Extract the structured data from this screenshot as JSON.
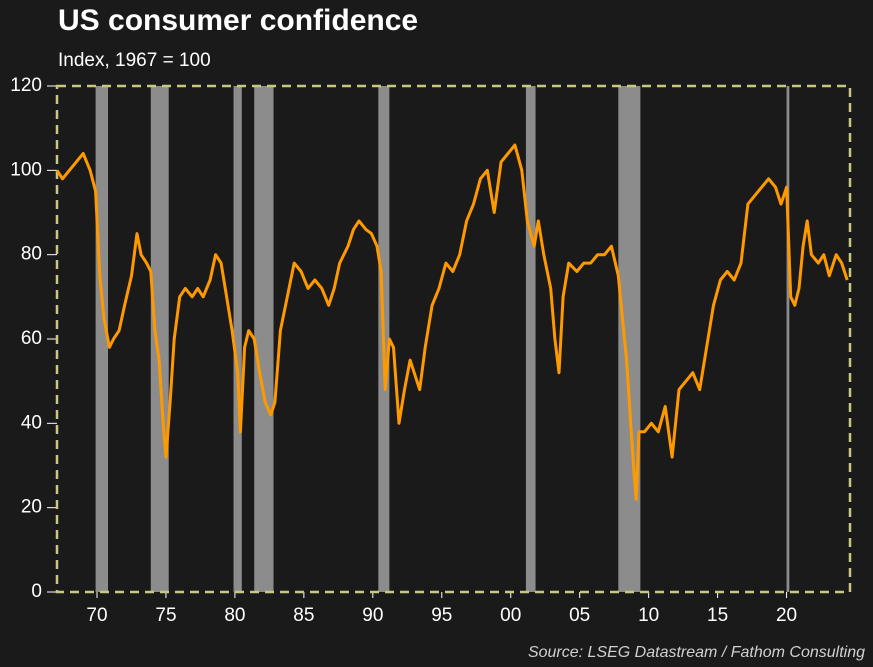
{
  "chart_data": {
    "type": "line",
    "title": "US consumer confidence",
    "subtitle": "Index, 1967 = 100",
    "source": "Source: LSEG Datastream / Fathom Consulting",
    "color": "#ff9900",
    "recession_color": "#8c8c8c",
    "recessions": [
      [
        1969.9,
        1970.8
      ],
      [
        1973.9,
        1975.2
      ],
      [
        1979.9,
        1980.5
      ],
      [
        1981.4,
        1982.8
      ],
      [
        1990.4,
        1991.2
      ],
      [
        2001.1,
        2001.8
      ],
      [
        2007.8,
        2009.4
      ],
      [
        2020.0,
        2020.2
      ]
    ],
    "xlim": [
      1967.1,
      2024.6
    ],
    "ylim": [
      0,
      120
    ],
    "yticks": [
      0,
      20,
      40,
      60,
      80,
      100,
      120
    ],
    "xticks": [
      {
        "value": 1970,
        "label": "70"
      },
      {
        "value": 1975,
        "label": "75"
      },
      {
        "value": 1980,
        "label": "80"
      },
      {
        "value": 1985,
        "label": "85"
      },
      {
        "value": 1990,
        "label": "90"
      },
      {
        "value": 1995,
        "label": "95"
      },
      {
        "value": 2000,
        "label": "00"
      },
      {
        "value": 2005,
        "label": "05"
      },
      {
        "value": 2010,
        "label": "10"
      },
      {
        "value": 2015,
        "label": "15"
      },
      {
        "value": 2020,
        "label": "20"
      }
    ],
    "x": [
      1967.1,
      1967.5,
      1968,
      1968.5,
      1969,
      1969.5,
      1969.9,
      1970.2,
      1970.5,
      1970.9,
      1971.2,
      1971.6,
      1972,
      1972.5,
      1972.9,
      1973.2,
      1973.6,
      1973.9,
      1974.2,
      1974.5,
      1974.8,
      1975.0,
      1975.3,
      1975.6,
      1976,
      1976.4,
      1976.9,
      1977.3,
      1977.7,
      1978.2,
      1978.6,
      1979,
      1979.4,
      1979.8,
      1980.2,
      1980.4,
      1980.7,
      1981.0,
      1981.4,
      1981.8,
      1982.2,
      1982.6,
      1982.9,
      1983.3,
      1983.8,
      1984.3,
      1984.8,
      1985.3,
      1985.8,
      1986.3,
      1986.8,
      1987.2,
      1987.6,
      1988.2,
      1988.6,
      1989,
      1989.5,
      1989.9,
      1990.3,
      1990.6,
      1990.9,
      1991.2,
      1991.5,
      1991.9,
      1992.3,
      1992.7,
      1993,
      1993.4,
      1993.8,
      1994.3,
      1994.8,
      1995.3,
      1995.8,
      1996.3,
      1996.8,
      1997.3,
      1997.8,
      1998.3,
      1998.8,
      1999.3,
      1999.8,
      2000.3,
      2000.8,
      2001.2,
      2001.7,
      2002.0,
      2002.4,
      2002.9,
      2003.2,
      2003.5,
      2003.8,
      2004.2,
      2004.8,
      2005.3,
      2005.8,
      2006.3,
      2006.8,
      2007.3,
      2007.8,
      2008.1,
      2008.4,
      2008.7,
      2008.9,
      2009.1,
      2009.3,
      2009.7,
      2010.2,
      2010.7,
      2011.2,
      2011.7,
      2012.2,
      2012.7,
      2013.2,
      2013.7,
      2014.2,
      2014.7,
      2015.2,
      2015.7,
      2016.2,
      2016.7,
      2017.2,
      2017.7,
      2018.2,
      2018.7,
      2019.2,
      2019.6,
      2020.0,
      2020.3,
      2020.6,
      2020.9,
      2021.2,
      2021.5,
      2021.8,
      2022.3,
      2022.7,
      2023.1,
      2023.6,
      2024.0,
      2024.4
    ],
    "series": [
      {
        "name": "Consumer confidence",
        "color": "#ff9900",
        "values": [
          100,
          98,
          100,
          102,
          104,
          100,
          95,
          75,
          65,
          58,
          60,
          62,
          68,
          75,
          85,
          80,
          78,
          76,
          62,
          55,
          40,
          32,
          45,
          60,
          70,
          72,
          70,
          72,
          70,
          74,
          80,
          78,
          70,
          62,
          52,
          38,
          58,
          62,
          60,
          52,
          45,
          42,
          45,
          62,
          70,
          78,
          76,
          72,
          74,
          72,
          68,
          72,
          78,
          82,
          86,
          88,
          86,
          85,
          82,
          76,
          48,
          60,
          58,
          40,
          48,
          55,
          52,
          48,
          58,
          68,
          72,
          78,
          76,
          80,
          88,
          92,
          98,
          100,
          90,
          102,
          104,
          106,
          100,
          88,
          82,
          88,
          80,
          72,
          60,
          52,
          70,
          78,
          76,
          78,
          78,
          80,
          80,
          82,
          75,
          65,
          55,
          40,
          30,
          22,
          38,
          38,
          40,
          38,
          44,
          32,
          48,
          50,
          52,
          48,
          58,
          68,
          74,
          76,
          74,
          78,
          92,
          94,
          96,
          98,
          96,
          92,
          96,
          70,
          68,
          72,
          82,
          88,
          80,
          78,
          80,
          75,
          80,
          78,
          74
        ]
      }
    ]
  }
}
